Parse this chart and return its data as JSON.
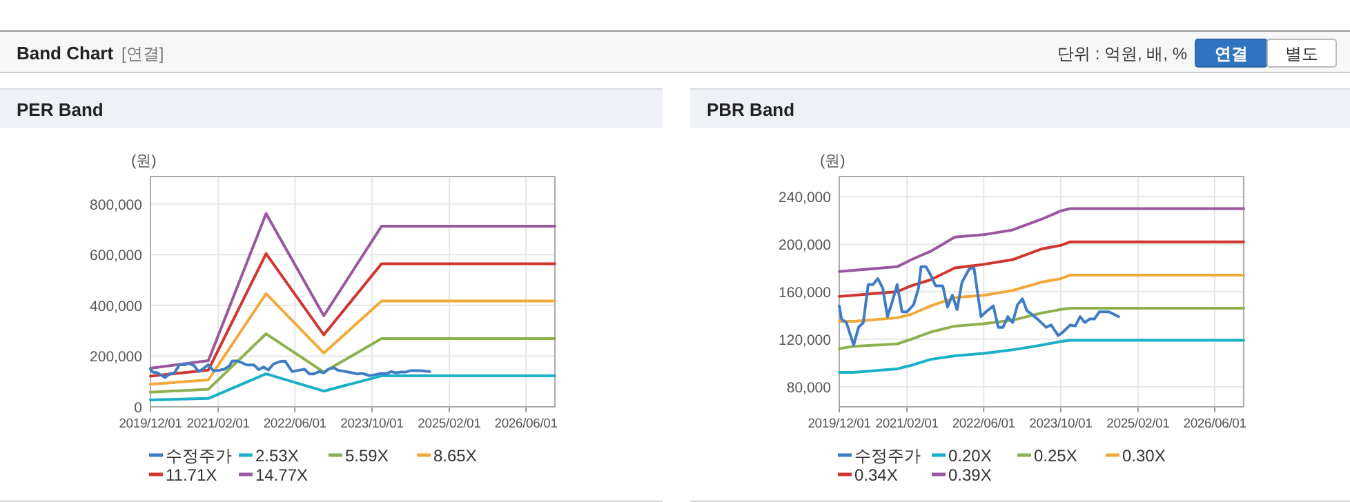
{
  "chart_data": [
    {
      "type": "line",
      "title": "PER Band",
      "ylabel": "(원)",
      "legend": "bottom",
      "grid": true,
      "marker": "none",
      "line_style": "solid",
      "annotations": [
        "Band Chart",
        "[연결]",
        "단위 : 억원, 배, %",
        "연결",
        "별도"
      ],
      "xlim": [
        "2019-12-01",
        "2026-12-01"
      ],
      "xticks": [
        {
          "value": "2019-12-01",
          "label": "2019/12/01"
        },
        {
          "value": "2021-02-01",
          "label": "2021/02/01"
        },
        {
          "value": "2022-06-01",
          "label": "2022/06/01"
        },
        {
          "value": "2023-10-01",
          "label": "2023/10/01"
        },
        {
          "value": "2025-02-01",
          "label": "2025/02/01"
        },
        {
          "value": "2026-06-01",
          "label": "2026/06/01"
        }
      ],
      "ylim": [
        0,
        908000
      ],
      "yticks": [
        0,
        {
          "value": 200000,
          "label": "200,000"
        },
        {
          "value": 400000,
          "label": "400,000"
        },
        {
          "value": 600000,
          "label": "600,000"
        },
        {
          "value": 800000,
          "label": "800,000"
        }
      ],
      "series": [
        {
          "name": "수정주가",
          "color": "#3f7cc6",
          "x": [
            "2019-12-01",
            "2019-12-15",
            "2020-01-15",
            "2020-03-01",
            "2020-04-01",
            "2020-05-01",
            "2020-06-01",
            "2020-07-01",
            "2020-08-01",
            "2020-09-01",
            "2020-10-01",
            "2020-11-01",
            "2020-12-01",
            "2021-01-01",
            "2021-02-01",
            "2021-03-15",
            "2021-04-15",
            "2021-05-01",
            "2021-06-01",
            "2021-07-01",
            "2021-08-01",
            "2021-09-15",
            "2021-10-15",
            "2021-11-15",
            "2021-12-15",
            "2022-01-15",
            "2022-03-01",
            "2022-04-01",
            "2022-04-15",
            "2022-05-15",
            "2022-06-15",
            "2022-08-01",
            "2022-09-01",
            "2022-10-01",
            "2022-11-01",
            "2022-12-01",
            "2023-01-01",
            "2023-02-01",
            "2023-03-01",
            "2023-04-01",
            "2023-05-15",
            "2023-07-01",
            "2023-08-01",
            "2023-09-15",
            "2023-10-15",
            "2023-12-01",
            "2024-01-01",
            "2024-02-01",
            "2024-03-01",
            "2024-04-01",
            "2024-05-01",
            "2024-06-01",
            "2024-08-01",
            "2024-10-01"
          ],
          "values": [
            148000,
            137000,
            134000,
            115000,
            130000,
            134000,
            166000,
            166000,
            171000,
            163000,
            139000,
            152000,
            166000,
            143000,
            143000,
            149000,
            163000,
            181000,
            181000,
            174000,
            165000,
            165000,
            147000,
            157000,
            145000,
            168000,
            179000,
            180000,
            167000,
            139000,
            143000,
            148000,
            130000,
            130000,
            139000,
            134000,
            149000,
            154000,
            144000,
            141000,
            136000,
            130000,
            132000,
            123000,
            126000,
            132000,
            131000,
            139000,
            134000,
            137000,
            137000,
            143000,
            143000,
            139000
          ]
        },
        {
          "name": "2.53X",
          "color": "#1ab0c8",
          "x": [
            "2019-12-01",
            "2020-12-01",
            "2021-12-01",
            "2022-12-01",
            "2023-12-01",
            "2026-12-01"
          ],
          "values": [
            27000,
            33000,
            130000,
            62000,
            122000,
            122000
          ]
        },
        {
          "name": "5.59X",
          "color": "#8fb04f",
          "x": [
            "2019-12-01",
            "2020-12-01",
            "2021-12-01",
            "2022-12-01",
            "2023-12-01",
            "2026-12-01"
          ],
          "values": [
            58000,
            69000,
            288000,
            137000,
            269000,
            269000
          ]
        },
        {
          "name": "8.65X",
          "color": "#f2a93b",
          "x": [
            "2019-12-01",
            "2020-12-01",
            "2021-12-01",
            "2022-12-01",
            "2023-12-01",
            "2026-12-01"
          ],
          "values": [
            89000,
            106000,
            446000,
            212000,
            417000,
            417000
          ]
        },
        {
          "name": "11.71X",
          "color": "#d0352e",
          "x": [
            "2019-12-01",
            "2020-12-01",
            "2021-12-01",
            "2022-12-01",
            "2023-12-01",
            "2026-12-01"
          ],
          "values": [
            121000,
            145000,
            604000,
            284000,
            564000,
            564000
          ]
        },
        {
          "name": "14.77X",
          "color": "#9b56a0",
          "x": [
            "2019-12-01",
            "2020-12-01",
            "2021-12-01",
            "2022-12-01",
            "2023-12-01",
            "2026-12-01"
          ],
          "values": [
            152000,
            182000,
            762000,
            359000,
            712000,
            712000
          ]
        }
      ]
    },
    {
      "type": "line",
      "title": "PBR Band",
      "ylabel": "(원)",
      "legend": "bottom",
      "grid": true,
      "marker": "none",
      "line_style": "solid",
      "xlim": [
        "2019-12-01",
        "2026-12-01"
      ],
      "xticks": [
        {
          "value": "2019-12-01",
          "label": "2019/12/01"
        },
        {
          "value": "2021-02-01",
          "label": "2021/02/01"
        },
        {
          "value": "2022-06-01",
          "label": "2022/06/01"
        },
        {
          "value": "2023-10-01",
          "label": "2023/10/01"
        },
        {
          "value": "2025-02-01",
          "label": "2025/02/01"
        },
        {
          "value": "2026-06-01",
          "label": "2026/06/01"
        }
      ],
      "ylim": [
        63000,
        257000
      ],
      "yticks": [
        {
          "value": 80000,
          "label": "80,000"
        },
        {
          "value": 120000,
          "label": "120,000"
        },
        {
          "value": 160000,
          "label": "160,000"
        },
        {
          "value": 200000,
          "label": "200,000"
        },
        {
          "value": 240000,
          "label": "240,000"
        }
      ],
      "series": [
        {
          "name": "수정주가",
          "color": "#3f7cc6",
          "x": [
            "2019-12-01",
            "2019-12-15",
            "2020-01-15",
            "2020-03-01",
            "2020-04-01",
            "2020-05-01",
            "2020-06-01",
            "2020-07-01",
            "2020-08-01",
            "2020-09-01",
            "2020-10-01",
            "2020-11-01",
            "2020-12-01",
            "2021-01-01",
            "2021-02-01",
            "2021-03-15",
            "2021-04-15",
            "2021-05-01",
            "2021-06-01",
            "2021-07-01",
            "2021-08-01",
            "2021-09-15",
            "2021-10-15",
            "2021-11-15",
            "2021-12-15",
            "2022-01-15",
            "2022-03-01",
            "2022-04-01",
            "2022-04-15",
            "2022-05-15",
            "2022-06-15",
            "2022-08-01",
            "2022-09-01",
            "2022-10-01",
            "2022-11-01",
            "2022-12-01",
            "2023-01-01",
            "2023-02-01",
            "2023-03-01",
            "2023-04-01",
            "2023-05-15",
            "2023-07-01",
            "2023-08-01",
            "2023-09-15",
            "2023-10-15",
            "2023-12-01",
            "2024-01-01",
            "2024-02-01",
            "2024-03-01",
            "2024-04-01",
            "2024-05-01",
            "2024-06-01",
            "2024-08-01",
            "2024-10-01"
          ],
          "values": [
            148000,
            137000,
            134000,
            115000,
            130000,
            134000,
            166000,
            166000,
            171000,
            163000,
            139000,
            152000,
            166000,
            143000,
            143000,
            149000,
            163000,
            181000,
            181000,
            174000,
            165000,
            165000,
            147000,
            157000,
            145000,
            168000,
            179000,
            180000,
            167000,
            139000,
            143000,
            148000,
            130000,
            130000,
            139000,
            134000,
            149000,
            154000,
            144000,
            141000,
            136000,
            130000,
            132000,
            123000,
            126000,
            132000,
            131000,
            139000,
            134000,
            137000,
            137000,
            143000,
            143000,
            139000
          ]
        },
        {
          "name": "0.20X",
          "color": "#1ab0c8",
          "x": [
            "2019-12-01",
            "2020-03-01",
            "2020-12-01",
            "2021-03-01",
            "2021-07-01",
            "2021-12-01",
            "2022-06-01",
            "2022-12-01",
            "2023-06-01",
            "2023-10-01",
            "2023-12-01",
            "2026-12-01"
          ],
          "values": [
            92000,
            92000,
            95000,
            98000,
            103000,
            106000,
            108000,
            111000,
            115000,
            118000,
            119000,
            119000
          ]
        },
        {
          "name": "0.25X",
          "color": "#8fb04f",
          "x": [
            "2019-12-01",
            "2020-03-01",
            "2020-12-01",
            "2021-03-01",
            "2021-07-01",
            "2021-12-01",
            "2022-06-01",
            "2022-12-01",
            "2023-06-01",
            "2023-10-01",
            "2023-12-01",
            "2026-12-01"
          ],
          "values": [
            112000,
            114000,
            116000,
            120000,
            126000,
            131000,
            133000,
            136000,
            142000,
            145000,
            146000,
            146000
          ]
        },
        {
          "name": "0.30X",
          "color": "#f2a93b",
          "x": [
            "2019-12-01",
            "2020-03-01",
            "2020-12-01",
            "2021-03-01",
            "2021-07-01",
            "2021-12-01",
            "2022-06-01",
            "2022-12-01",
            "2023-06-01",
            "2023-10-01",
            "2023-12-01",
            "2026-12-01"
          ],
          "values": [
            135000,
            135000,
            138000,
            141000,
            148000,
            155000,
            157000,
            161000,
            168000,
            171000,
            174000,
            174000
          ]
        },
        {
          "name": "0.34X",
          "color": "#d0352e",
          "x": [
            "2019-12-01",
            "2020-03-01",
            "2020-12-01",
            "2021-03-01",
            "2021-07-01",
            "2021-12-01",
            "2022-06-01",
            "2022-12-01",
            "2023-06-01",
            "2023-10-01",
            "2023-12-01",
            "2026-12-01"
          ],
          "values": [
            156000,
            157000,
            160000,
            165000,
            170000,
            180000,
            183000,
            187000,
            196000,
            199000,
            202000,
            202000
          ]
        },
        {
          "name": "0.39X",
          "color": "#9b56a0",
          "x": [
            "2019-12-01",
            "2020-03-01",
            "2020-12-01",
            "2021-03-01",
            "2021-07-01",
            "2021-12-01",
            "2022-06-01",
            "2022-12-01",
            "2023-06-01",
            "2023-10-01",
            "2023-12-01",
            "2026-12-01"
          ],
          "values": [
            177000,
            178000,
            181000,
            187000,
            194000,
            206000,
            208000,
            212000,
            221000,
            228000,
            230000,
            230000
          ]
        }
      ]
    }
  ]
}
